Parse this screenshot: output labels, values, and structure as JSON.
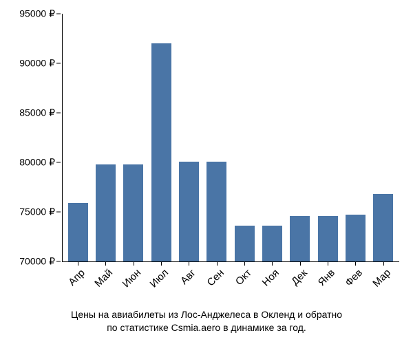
{
  "chart": {
    "type": "bar",
    "categories": [
      "Апр",
      "Май",
      "Июн",
      "Июл",
      "Авг",
      "Сен",
      "Окт",
      "Ноя",
      "Дек",
      "Янв",
      "Фев",
      "Мар"
    ],
    "values": [
      75900,
      79800,
      79800,
      92000,
      80100,
      80100,
      73600,
      73600,
      74600,
      74600,
      74700,
      76800
    ],
    "bar_color": "#4a75a6",
    "background_color": "#ffffff",
    "axis_color": "#000000",
    "text_color": "#000000",
    "ylim": [
      70000,
      95000
    ],
    "yticks": [
      70000,
      75000,
      80000,
      85000,
      90000,
      95000
    ],
    "ytick_labels": [
      "70000 ₽",
      "75000 ₽",
      "80000 ₽",
      "85000 ₽",
      "90000 ₽",
      "95000 ₽"
    ],
    "ytick_fontsize": 14,
    "xtick_fontsize": 15,
    "xtick_rotation": -45,
    "bar_width": 0.85,
    "caption": "Цены на авиабилеты из Лос-Анджелеса в Окленд и обратно\nпо статистике Csmia.aero в динамике за год.",
    "caption_fontsize": 14
  }
}
